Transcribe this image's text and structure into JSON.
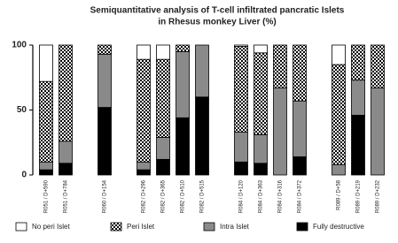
{
  "chart_data": {
    "type": "stacked_bar",
    "title": [
      "Semiquantitative analysis of T-cell infiltrated pancratic Islets",
      "in Rhesus monkey Liver (%)"
    ],
    "categories": [
      "R051 / D+590",
      "R051 / D+784",
      null,
      "R060 / D+154",
      null,
      "R082 / D+296",
      "R082 / D+365",
      "R082 / D+510",
      "R082 / D+515",
      null,
      "R084 / D+120",
      "R084 / D+363",
      "R084 / D+316",
      "R084 / D+372",
      null,
      "R089 / D+58",
      "R089 / D+219",
      "R089 / D+232"
    ],
    "series": [
      {
        "name": "No peri Islet",
        "color": "#ffffff",
        "values": [
          28,
          0,
          null,
          0,
          null,
          11,
          11,
          0,
          0,
          null,
          1,
          6,
          0,
          0,
          null,
          15,
          0,
          0
        ]
      },
      {
        "name": "Peri Islet",
        "color": "#000000",
        "pattern": "checker",
        "values": [
          62,
          74,
          null,
          7,
          null,
          79,
          60,
          5,
          0,
          null,
          66,
          63,
          33,
          43,
          null,
          77,
          27,
          33
        ]
      },
      {
        "name": "Intra Islet",
        "color": "#8a8a8a",
        "values": [
          6,
          17,
          null,
          41,
          null,
          6,
          17,
          51,
          40,
          null,
          23,
          22,
          67,
          43,
          null,
          8,
          27,
          67
        ]
      },
      {
        "name": "Fully destructive",
        "color": "#000000",
        "values": [
          4,
          9,
          null,
          52,
          null,
          4,
          12,
          44,
          60,
          null,
          10,
          9,
          0,
          14,
          null,
          0,
          46,
          0
        ]
      }
    ],
    "ylim": [
      0,
      100
    ],
    "yticks": [
      0,
      50,
      100
    ]
  }
}
